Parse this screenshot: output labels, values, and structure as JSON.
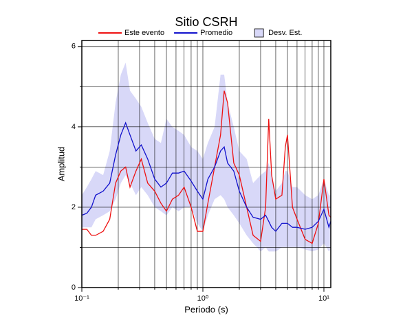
{
  "chart_data": {
    "type": "line",
    "title": "Sitio CSRH",
    "xlabel": "Periodo (s)",
    "ylabel": "Amplitud",
    "xscale": "log",
    "legend": "top",
    "grid": true,
    "xlim": [
      0.1,
      11.4
    ],
    "ylim": [
      0,
      6.15
    ],
    "xticks": [
      {
        "value": 0.1,
        "label": "10⁻¹"
      },
      {
        "value": 1,
        "label": "10⁰"
      },
      {
        "value": 10,
        "label": "10¹"
      }
    ],
    "xminor_ticks": [
      0.2,
      0.3,
      0.4,
      0.5,
      0.6,
      0.7,
      0.8,
      0.9,
      2,
      3,
      4,
      5,
      6,
      7,
      8,
      9
    ],
    "yticks": [
      0,
      2,
      4,
      6
    ],
    "yminor_ticks": [
      1,
      3,
      5
    ],
    "x": [
      0.1,
      0.11,
      0.12,
      0.13,
      0.15,
      0.17,
      0.19,
      0.21,
      0.23,
      0.25,
      0.28,
      0.31,
      0.35,
      0.4,
      0.45,
      0.5,
      0.56,
      0.63,
      0.7,
      0.8,
      0.9,
      1.0,
      1.1,
      1.25,
      1.4,
      1.5,
      1.6,
      1.8,
      2.0,
      2.3,
      2.6,
      3.0,
      3.3,
      3.5,
      3.7,
      4.0,
      4.5,
      4.8,
      5.0,
      5.5,
      6.0,
      7.0,
      8.0,
      9.0,
      10.0,
      11.0,
      11.4
    ],
    "band": {
      "name": "Desv. Est.",
      "color": "#d8d8f8",
      "upper": [
        2.3,
        2.5,
        2.7,
        2.9,
        2.8,
        3.4,
        4.6,
        5.3,
        5.6,
        4.9,
        4.7,
        4.5,
        4.1,
        3.7,
        3.6,
        4.2,
        4.0,
        3.9,
        3.8,
        3.5,
        3.4,
        3.2,
        3.6,
        4.0,
        5.3,
        5.3,
        4.6,
        4.0,
        3.4,
        3.2,
        2.6,
        2.8,
        2.9,
        3.1,
        2.8,
        2.4,
        2.6,
        2.9,
        2.9,
        2.5,
        2.5,
        2.3,
        2.2,
        2.3,
        2.7,
        2.3,
        2.3
      ],
      "lower": [
        1.5,
        1.5,
        1.5,
        1.7,
        1.8,
        1.9,
        2.2,
        2.6,
        2.8,
        2.6,
        2.3,
        2.5,
        2.3,
        2.0,
        1.9,
        1.8,
        2.0,
        1.9,
        2.0,
        2.0,
        1.6,
        1.4,
        1.8,
        2.2,
        2.3,
        2.2,
        2.0,
        1.8,
        1.6,
        1.3,
        1.1,
        0.9,
        1.0,
        0.9,
        0.9,
        0.9,
        1.0,
        1.0,
        1.0,
        1.0,
        1.0,
        0.95,
        0.9,
        0.95,
        1.1,
        0.9,
        0.95
      ]
    },
    "series": [
      {
        "name": "Este evento",
        "color": "#ee1111",
        "values": [
          1.45,
          1.45,
          1.3,
          1.3,
          1.4,
          1.7,
          2.6,
          2.9,
          3.0,
          2.5,
          2.9,
          3.2,
          2.6,
          2.4,
          2.1,
          1.9,
          2.2,
          2.3,
          2.5,
          2.0,
          1.4,
          1.4,
          2.1,
          3.0,
          3.8,
          4.9,
          4.6,
          3.1,
          2.8,
          2.0,
          1.3,
          1.15,
          2.0,
          4.2,
          2.8,
          2.2,
          2.3,
          3.5,
          3.8,
          2.0,
          1.7,
          1.2,
          1.1,
          1.6,
          2.7,
          1.8,
          1.75
        ]
      },
      {
        "name": "Promedio",
        "color": "#1111cc",
        "values": [
          1.8,
          1.85,
          2.0,
          2.3,
          2.4,
          2.6,
          3.3,
          3.8,
          4.1,
          3.8,
          3.4,
          3.55,
          3.2,
          2.7,
          2.5,
          2.6,
          2.85,
          2.85,
          2.9,
          2.65,
          2.4,
          2.2,
          2.7,
          3.0,
          3.4,
          3.5,
          3.1,
          2.9,
          2.4,
          2.0,
          1.75,
          1.7,
          1.8,
          1.65,
          1.5,
          1.4,
          1.6,
          1.6,
          1.6,
          1.5,
          1.5,
          1.45,
          1.5,
          1.65,
          1.95,
          1.5,
          1.65
        ]
      }
    ]
  }
}
